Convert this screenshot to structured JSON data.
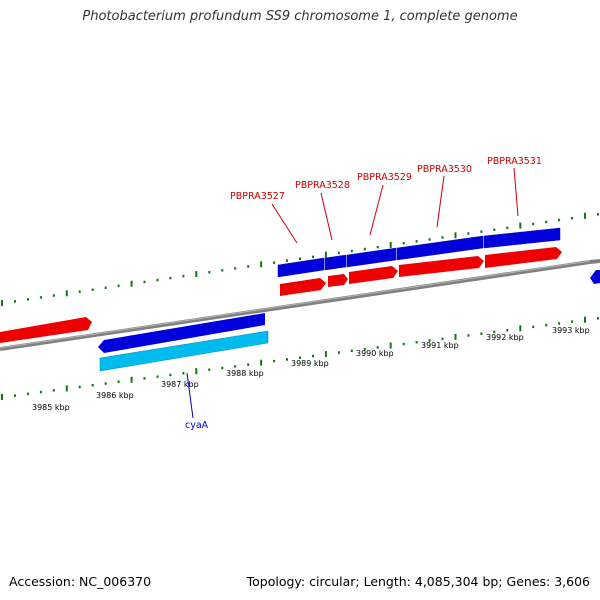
{
  "header": {
    "title": "Photobacterium profundum SS9 chromosome 1, complete genome"
  },
  "footer": {
    "accession": "Accession: NC_006370",
    "summary": "Topology: circular; Length: 4,085,304 bp; Genes: 3,606"
  },
  "colors": {
    "forward_gene": "#ee0000",
    "reverse_gene": "#0000dd",
    "rna_gene": "#00bbee",
    "backbone": "#808080",
    "tick": "#117711",
    "label_red": "#cc0000",
    "label_blue": "#0000cc"
  },
  "ticks": {
    "inner": [
      "3985 kbp",
      "3986 kbp",
      "3987 kbp",
      "3988 kbp",
      "3989 kbp",
      "3990 kbp",
      "3991 kbp",
      "3992 kbp",
      "3993 kbp"
    ]
  },
  "genes": {
    "labels": {
      "pbpra3527": "PBPRA3527",
      "pbpra3528": "PBPRA3528",
      "pbpra3529": "PBPRA3529",
      "pbpra3530": "PBPRA3530",
      "pbpra3531": "PBPRA3531",
      "cyaA": "cyaA"
    }
  }
}
